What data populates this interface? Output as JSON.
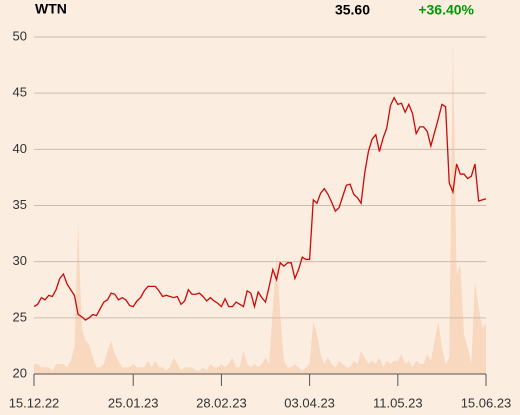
{
  "chart_data": {
    "type": "line",
    "title": "WTN",
    "last_price": "35.60",
    "change": "+36.40%",
    "change_color": "#009900",
    "color": "#cc0a0a",
    "volume_color": "#f9d8c0",
    "grid": true,
    "ylim": [
      20,
      50
    ],
    "yticks": [
      20,
      25,
      30,
      35,
      40,
      45,
      50
    ],
    "xlim": [
      0,
      123
    ],
    "xticks": [
      {
        "value": 0,
        "label": "15.12.22"
      },
      {
        "value": 27,
        "label": "25.01.23"
      },
      {
        "value": 51,
        "label": "28.02.23"
      },
      {
        "value": 75,
        "label": "03.04.23"
      },
      {
        "value": 99,
        "label": "11.05.23"
      },
      {
        "value": 123,
        "label": "15.06.23"
      }
    ],
    "values": [
      26.0,
      26.2,
      26.8,
      26.6,
      27.0,
      26.9,
      27.5,
      28.5,
      28.9,
      28.0,
      27.5,
      27.0,
      25.3,
      25.1,
      24.8,
      25.0,
      25.3,
      25.2,
      25.8,
      26.4,
      26.6,
      27.2,
      27.1,
      26.6,
      26.8,
      26.6,
      26.1,
      26.0,
      26.5,
      26.8,
      27.4,
      27.8,
      27.8,
      27.8,
      27.4,
      26.9,
      27.0,
      26.9,
      26.8,
      26.9,
      26.2,
      26.5,
      27.5,
      27.1,
      27.1,
      27.2,
      26.9,
      26.5,
      26.8,
      26.5,
      26.3,
      26.0,
      26.7,
      26.0,
      26.0,
      26.4,
      26.2,
      26.0,
      27.4,
      27.2,
      26.0,
      27.3,
      26.8,
      26.4,
      27.8,
      29.3,
      28.4,
      29.9,
      29.6,
      29.9,
      29.9,
      28.5,
      29.3,
      30.4,
      30.2,
      30.2,
      35.5,
      35.2,
      36.1,
      36.5,
      36.0,
      35.3,
      34.5,
      34.8,
      35.8,
      36.8,
      36.9,
      36.0,
      35.7,
      35.2,
      37.9,
      39.8,
      40.9,
      41.3,
      39.8,
      41.0,
      41.9,
      43.9,
      44.6,
      44.0,
      44.1,
      43.3,
      44.0,
      43.2,
      41.4,
      42.0,
      42.0,
      41.6,
      40.3,
      41.5,
      42.7,
      44.0,
      43.8,
      37.0,
      36.2,
      38.7,
      37.8,
      37.8,
      37.4,
      37.6,
      38.7,
      35.4,
      35.5,
      35.6
    ],
    "volume_lim": [
      0,
      100
    ],
    "volume": [
      3,
      3,
      2,
      2,
      2,
      1,
      3,
      3,
      3,
      2,
      4,
      8,
      46,
      14,
      10,
      9,
      5,
      2,
      2,
      3,
      7,
      10,
      6,
      4,
      2,
      2,
      2,
      3,
      2,
      2,
      2,
      4,
      2,
      4,
      2,
      2,
      1,
      2,
      5,
      3,
      1,
      2,
      2,
      2,
      1,
      1,
      2,
      1,
      3,
      2,
      2,
      3,
      2,
      3,
      5,
      2,
      2,
      7,
      3,
      2,
      3,
      2,
      3,
      5,
      3,
      20,
      36,
      18,
      4,
      2,
      2,
      3,
      2,
      1,
      2,
      3,
      16,
      12,
      6,
      3,
      5,
      3,
      2,
      4,
      3,
      2,
      2,
      4,
      3,
      7,
      5,
      3,
      4,
      3,
      5,
      2,
      4,
      3,
      4,
      4,
      6,
      3,
      4,
      2,
      4,
      3,
      3,
      6,
      4,
      10,
      16,
      8,
      3,
      5,
      100,
      30,
      33,
      12,
      8,
      3,
      28,
      20,
      14,
      15
    ]
  }
}
